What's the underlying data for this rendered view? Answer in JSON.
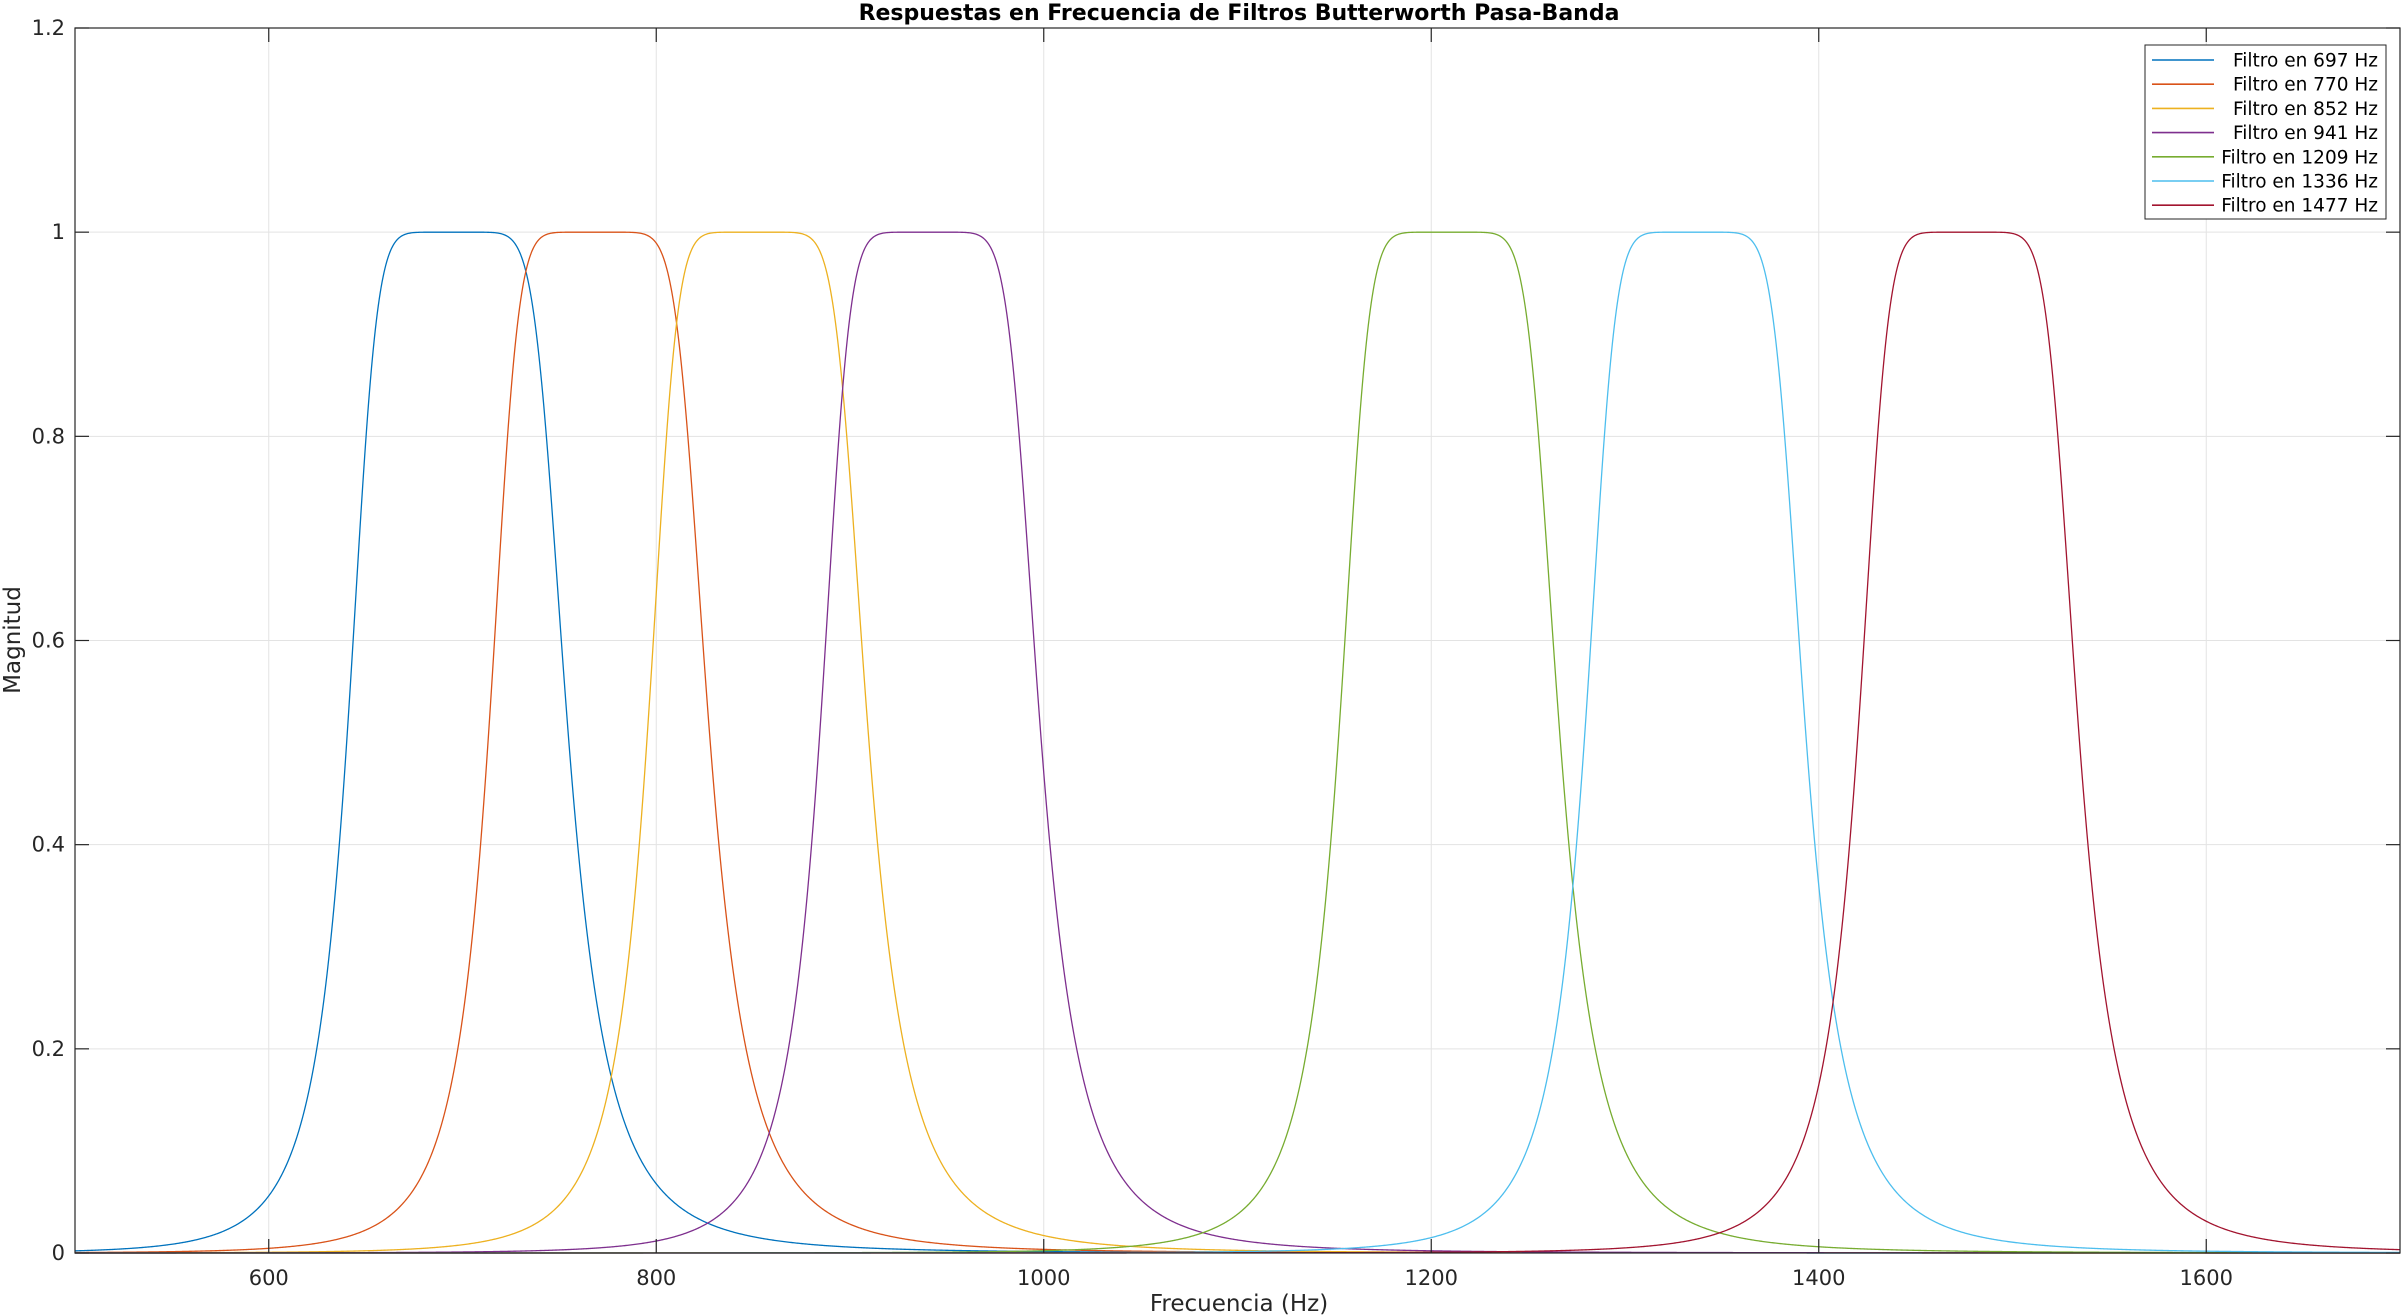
{
  "chart_data": {
    "type": "line",
    "title": "Respuestas en Frecuencia de Filtros Butterworth Pasa-Banda",
    "xlabel": "Frecuencia (Hz)",
    "ylabel": "Magnitud",
    "xlim": [
      500,
      1700
    ],
    "ylim": [
      0,
      1.2
    ],
    "xticks": [
      600,
      800,
      1000,
      1200,
      1400,
      1600
    ],
    "yticks": [
      0,
      0.2,
      0.4,
      0.6,
      0.8,
      1,
      1.2
    ],
    "ytick_labels": [
      "0",
      "0.2",
      "0.4",
      "0.6",
      "0.8",
      "1",
      "1.2"
    ],
    "grid": true,
    "legend_position": "top-right",
    "filter_order": 4,
    "bandwidth_hz": 100,
    "series": [
      {
        "name": "Filtro en 697 Hz",
        "center": 697,
        "color": "#0072BD"
      },
      {
        "name": "Filtro en 770 Hz",
        "center": 770,
        "color": "#D95319"
      },
      {
        "name": "Filtro en 852 Hz",
        "center": 852,
        "color": "#EDB120"
      },
      {
        "name": "Filtro en 941 Hz",
        "center": 941,
        "color": "#7E2F8E"
      },
      {
        "name": "Filtro en 1209 Hz",
        "center": 1209,
        "color": "#77AC30"
      },
      {
        "name": "Filtro en 1336 Hz",
        "center": 1336,
        "color": "#4DBEEE"
      },
      {
        "name": "Filtro en 1477 Hz",
        "center": 1477,
        "color": "#A2142F"
      }
    ]
  }
}
